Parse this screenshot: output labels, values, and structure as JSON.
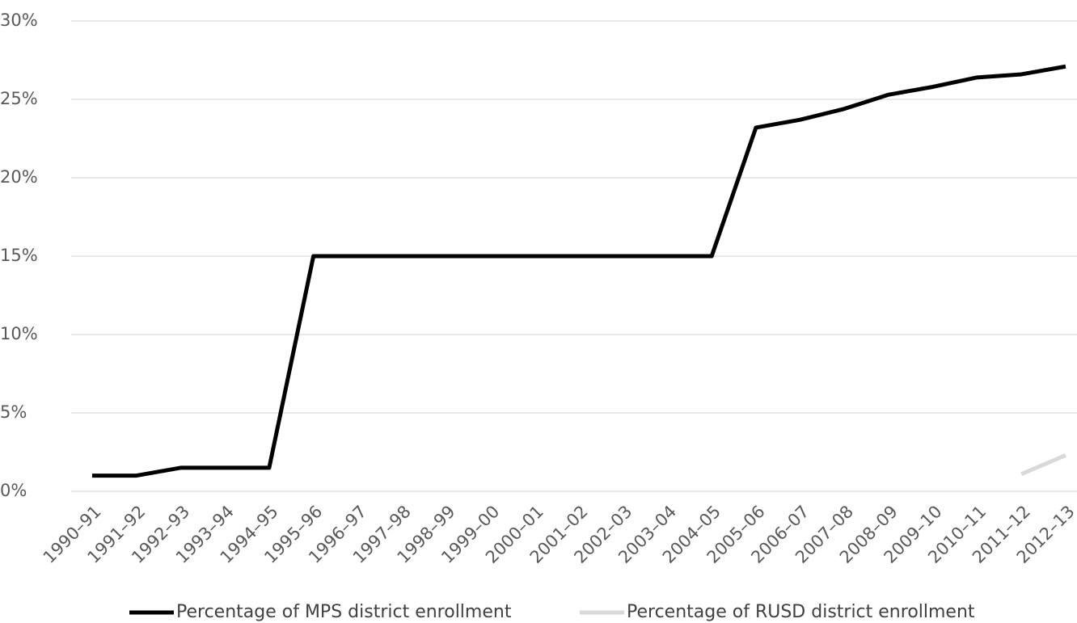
{
  "chart_data": {
    "type": "line",
    "categories": [
      "1990–91",
      "1991–92",
      "1992–93",
      "1993–94",
      "1994–95",
      "1995–96",
      "1996–97",
      "1997–98",
      "1998–99",
      "1999–00",
      "2000–01",
      "2001–02",
      "2002–03",
      "2003–04",
      "2004–05",
      "2005–06",
      "2006–07",
      "2007–08",
      "2008–09",
      "2009–10",
      "2010–11",
      "2011–12",
      "2012–13"
    ],
    "series": [
      {
        "name": "Percentage of MPS district enrollment",
        "color": "#000000",
        "values": [
          1,
          1,
          1.5,
          1.5,
          1.5,
          15,
          15,
          15,
          15,
          15,
          15,
          15,
          15,
          15,
          15,
          23.2,
          23.7,
          24.4,
          25.3,
          25.8,
          26.4,
          26.6,
          27.1
        ]
      },
      {
        "name": "Percentage of RUSD district enrollment",
        "color": "#d9d9d9",
        "values": [
          null,
          null,
          null,
          null,
          null,
          null,
          null,
          null,
          null,
          null,
          null,
          null,
          null,
          null,
          null,
          null,
          null,
          null,
          null,
          null,
          null,
          1.1,
          2.3
        ]
      }
    ],
    "ylim": [
      0,
      30
    ],
    "yticks": [
      {
        "value": 0,
        "label": "0%"
      },
      {
        "value": 5,
        "label": "5%"
      },
      {
        "value": 10,
        "label": "10%"
      },
      {
        "value": 15,
        "label": "15%"
      },
      {
        "value": 20,
        "label": "20%"
      },
      {
        "value": 25,
        "label": "25%"
      },
      {
        "value": 30,
        "label": "30%"
      }
    ],
    "grid": true,
    "legend": "bottom"
  }
}
